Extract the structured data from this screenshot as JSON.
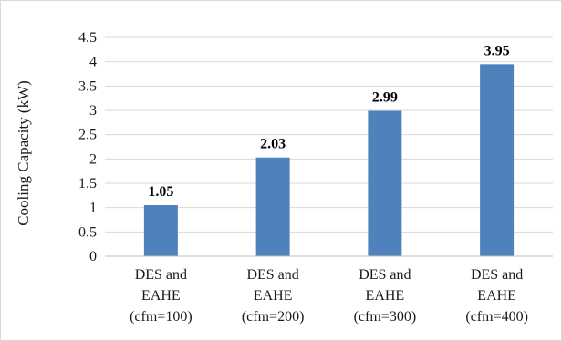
{
  "chart_data": {
    "type": "bar",
    "categories": [
      [
        "DES and",
        "EAHE",
        "(cfm=100)"
      ],
      [
        "DES and",
        "EAHE",
        "(cfm=200)"
      ],
      [
        "DES and",
        "EAHE",
        "(cfm=300)"
      ],
      [
        "DES and",
        "EAHE",
        "(cfm=400)"
      ]
    ],
    "values": [
      1.05,
      2.03,
      2.99,
      3.95
    ],
    "data_labels": [
      "1.05",
      "2.03",
      "2.99",
      "3.95"
    ],
    "ylabel": "Cooling Capacity (kW)",
    "ylim": [
      0,
      4.5
    ],
    "yticks": [
      0,
      0.5,
      1,
      1.5,
      2,
      2.5,
      3,
      3.5,
      4,
      4.5
    ],
    "ytick_labels": [
      "0",
      "0.5",
      "1",
      "1.5",
      "2",
      "2.5",
      "3",
      "3.5",
      "4",
      "4.5"
    ],
    "grid": true,
    "legend": "none",
    "colors": {
      "bar": "#4f81bd",
      "grid": "#d9d9d9",
      "axis": "#bfbfbf"
    }
  }
}
